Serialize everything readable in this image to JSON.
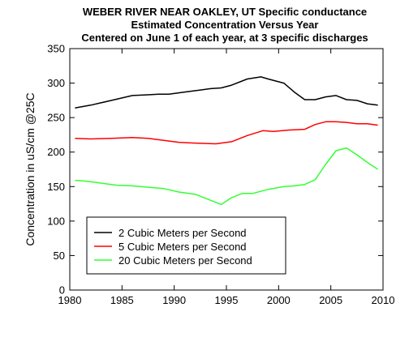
{
  "chart_data": {
    "type": "line",
    "title_lines": [
      "WEBER RIVER NEAR OAKLEY, UT     Specific conductance",
      "Estimated Concentration Versus Year",
      "Centered on June 1 of each year, at 3 specific discharges"
    ],
    "xlabel": "",
    "ylabel": "Concentration in uS/cm @25C",
    "xlim": [
      1980,
      2010
    ],
    "ylim": [
      0,
      350
    ],
    "xticks": [
      1980,
      1985,
      1990,
      1995,
      2000,
      2005,
      2010
    ],
    "yticks": [
      0,
      50,
      100,
      150,
      200,
      250,
      300,
      350
    ],
    "grid": false,
    "legend_position": "bottom-left",
    "series": [
      {
        "name": "2 Cubic Meters per Second",
        "color": "#000000",
        "x": [
          1980.5,
          1982,
          1984,
          1986,
          1987.5,
          1988.5,
          1989.5,
          1991,
          1992.5,
          1993.5,
          1994.5,
          1995.5,
          1997,
          1998.3,
          1999,
          2000.5,
          2001.5,
          2002.5,
          2003.5,
          2004.5,
          2005.5,
          2006.5,
          2007.5,
          2008.5,
          2009.5
        ],
        "values": [
          264,
          268,
          275,
          282,
          283,
          284,
          284,
          287,
          290,
          292,
          293,
          297,
          306,
          309,
          306,
          300,
          287,
          276,
          276,
          280,
          282,
          276,
          275,
          270,
          268
        ]
      },
      {
        "name": "5 Cubic Meters per Second",
        "color": "#ff0000",
        "x": [
          1980.5,
          1982,
          1984,
          1986,
          1987.5,
          1989,
          1990.5,
          1992,
          1994,
          1995.5,
          1997,
          1998.5,
          1999.5,
          2001,
          2002.5,
          2003.5,
          2004.5,
          2005.5,
          2006.5,
          2007.5,
          2008.5,
          2009.5
        ],
        "values": [
          220,
          219,
          220,
          221,
          220,
          217,
          214,
          213,
          212,
          215,
          224,
          231,
          230,
          232,
          233,
          240,
          244,
          244,
          243,
          241,
          241,
          239
        ]
      },
      {
        "name": "20 Cubic Meters per Second",
        "color": "#33ff33",
        "x": [
          1980.5,
          1981.5,
          1983,
          1984.5,
          1986,
          1987.5,
          1989,
          1990.5,
          1992,
          1993.5,
          1994.5,
          1995.5,
          1996.5,
          1997.5,
          1999,
          2000.5,
          2001.5,
          2002.5,
          2003.5,
          2004.5,
          2005.5,
          2006.5,
          2007.5,
          2008.5,
          2009.5
        ],
        "values": [
          159,
          158,
          155,
          152,
          151,
          149,
          147,
          142,
          139,
          130,
          124,
          134,
          140,
          140,
          146,
          150,
          151,
          153,
          160,
          182,
          202,
          206,
          196,
          185,
          175
        ]
      }
    ]
  }
}
